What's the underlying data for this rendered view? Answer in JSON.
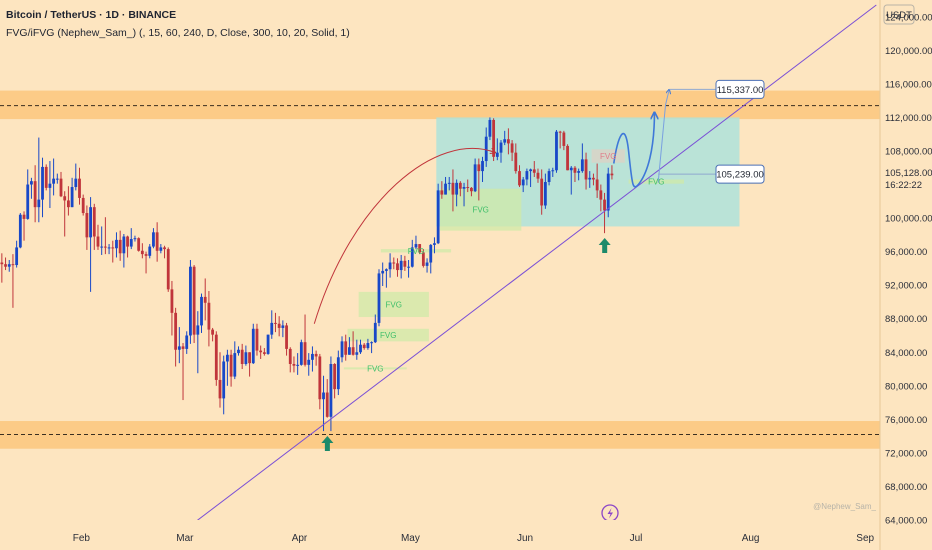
{
  "header": {
    "title": "Bitcoin / TetherUS · 1D · BINANCE",
    "indicator": "FVG/iFVG (Nephew_Sam_) (, 15, 60, 240, D, Close, 300, 10, 20, Solid, 1)"
  },
  "watermark": "@Nephew_Sam_",
  "flash_icon": "lightning-bolt-icon",
  "colors": {
    "background": "#fde5c0",
    "bull": "#1848c8",
    "bear": "#c0353b",
    "zone": "#fbc77c",
    "box": "#aee3da",
    "fvg_fill": "#cfeaa8",
    "fvg_text": "#3fbf6a",
    "trendline": "#7a4fd6",
    "arrow": "#1c8a6a",
    "projection": "#3e78d8"
  },
  "chart_data": {
    "type": "candlestick",
    "price_unit": "USDT",
    "x_axis": {
      "labels": [
        "Feb",
        "Mar",
        "Apr",
        "May",
        "Jun",
        "Jul",
        "Aug",
        "Sep"
      ],
      "start": "2025-01-10",
      "end": "2025-09-05"
    },
    "y_axis": {
      "range": [
        64000,
        126000
      ],
      "ticks": [
        "124,000.00",
        "120,000.00",
        "116,000.00",
        "112,000.00",
        "108,000.00",
        "100,000.00",
        "96,000.00",
        "92,000.00",
        "88,000.00",
        "84,000.00",
        "80,000.00",
        "76,000.00",
        "72,000.00",
        "68,000.00",
        "64,000.00"
      ]
    },
    "last_price": {
      "value": "105,128.00",
      "countdown": "16:22:22",
      "price": 105128
    },
    "price_labels": [
      {
        "text": "115,337.00",
        "price": 115337
      },
      {
        "text": "105,239.00",
        "price": 105239
      }
    ],
    "zones": [
      {
        "from": 111800,
        "to": 115200,
        "dashed_at": 113400
      },
      {
        "from": 72500,
        "to": 75800,
        "dashed_at": 74200
      }
    ],
    "consolidation_box": {
      "from_date": "2025-05-08",
      "to_date": "2025-07-29",
      "top": 112000,
      "bottom": 99000
    },
    "trendline": {
      "start": [
        "2025-03-03",
        63500
      ],
      "end": [
        "2025-09-04",
        125400
      ]
    },
    "fvg_zones": [
      {
        "label": "FVG",
        "from_date": "2025-05-09",
        "to_date": "2025-05-31",
        "top": 103500,
        "bottom": 98500
      },
      {
        "label": "FVG",
        "from_date": "2025-04-23",
        "to_date": "2025-05-12",
        "top": 96300,
        "bottom": 95900
      },
      {
        "label": "FVG",
        "from_date": "2025-04-17",
        "to_date": "2025-05-06",
        "top": 91200,
        "bottom": 88200
      },
      {
        "label": "FVG",
        "from_date": "2025-04-14",
        "to_date": "2025-05-06",
        "top": 86800,
        "bottom": 85300
      },
      {
        "label": "FVG",
        "from_date": "2025-04-13",
        "to_date": "2025-04-30",
        "top": 82200,
        "bottom": 82200
      },
      {
        "label": "FVG",
        "from_date": "2025-06-19",
        "to_date": "2025-06-28",
        "top": 108200,
        "bottom": 106600
      },
      {
        "label": "FVG",
        "from_date": "2025-06-29",
        "to_date": "2025-07-14",
        "top": 104600,
        "bottom": 104100
      }
    ],
    "ohlc": [
      [
        "2025-01-10",
        94700,
        95800,
        92300,
        94500
      ],
      [
        "2025-01-11",
        94500,
        95300,
        93800,
        94200
      ],
      [
        "2025-01-12",
        94200,
        95000,
        93600,
        94500
      ],
      [
        "2025-01-13",
        94500,
        95700,
        89300,
        94400
      ],
      [
        "2025-01-14",
        94400,
        97300,
        94100,
        96500
      ],
      [
        "2025-01-15",
        96500,
        100600,
        96400,
        100400
      ],
      [
        "2025-01-16",
        100400,
        100800,
        97300,
        99900
      ],
      [
        "2025-01-17",
        99900,
        105800,
        99800,
        104000
      ],
      [
        "2025-01-18",
        104000,
        104800,
        102300,
        104400
      ],
      [
        "2025-01-19",
        104400,
        106300,
        99500,
        101300
      ],
      [
        "2025-01-20",
        101300,
        109600,
        99500,
        102200
      ],
      [
        "2025-01-21",
        102200,
        107200,
        100100,
        106100
      ],
      [
        "2025-01-22",
        106100,
        106400,
        103300,
        103600
      ],
      [
        "2025-01-23",
        103600,
        106800,
        101200,
        104100
      ],
      [
        "2025-01-24",
        104100,
        107100,
        102700,
        104700
      ],
      [
        "2025-01-25",
        104700,
        105300,
        104100,
        104700
      ],
      [
        "2025-01-26",
        104700,
        105500,
        102500,
        102600
      ],
      [
        "2025-01-27",
        102600,
        103200,
        97800,
        102100
      ],
      [
        "2025-01-28",
        102100,
        103800,
        100300,
        101300
      ],
      [
        "2025-01-29",
        101300,
        104800,
        101300,
        103700
      ],
      [
        "2025-01-30",
        103700,
        106500,
        103300,
        104700
      ],
      [
        "2025-01-31",
        104700,
        106000,
        101600,
        102400
      ],
      [
        "2025-02-01",
        102400,
        102800,
        100300,
        100600
      ],
      [
        "2025-02-02",
        100600,
        101500,
        96200,
        97700
      ],
      [
        "2025-02-03",
        97700,
        102500,
        91200,
        101300
      ],
      [
        "2025-02-04",
        101300,
        101700,
        96200,
        97800
      ],
      [
        "2025-02-05",
        97800,
        99200,
        96200,
        96600
      ],
      [
        "2025-02-06",
        96600,
        99000,
        95600,
        96600
      ],
      [
        "2025-02-07",
        96600,
        100100,
        95700,
        96500
      ],
      [
        "2025-02-08",
        96500,
        96900,
        95700,
        96500
      ],
      [
        "2025-02-09",
        96500,
        97300,
        94700,
        96400
      ],
      [
        "2025-02-10",
        96400,
        98300,
        95300,
        97400
      ],
      [
        "2025-02-11",
        97400,
        98500,
        94900,
        95800
      ],
      [
        "2025-02-12",
        95800,
        98100,
        94100,
        97800
      ],
      [
        "2025-02-13",
        97800,
        97900,
        95300,
        96600
      ],
      [
        "2025-02-14",
        96600,
        98800,
        96300,
        97500
      ],
      [
        "2025-02-15",
        97500,
        97900,
        97200,
        97600
      ],
      [
        "2025-02-16",
        97600,
        97700,
        96000,
        96100
      ],
      [
        "2025-02-17",
        96100,
        97000,
        95200,
        95700
      ],
      [
        "2025-02-18",
        95700,
        96000,
        93400,
        95500
      ],
      [
        "2025-02-19",
        95500,
        96900,
        95200,
        96600
      ],
      [
        "2025-02-20",
        96600,
        98800,
        96400,
        98300
      ],
      [
        "2025-02-21",
        98300,
        99500,
        94800,
        96100
      ],
      [
        "2025-02-22",
        96100,
        96900,
        95800,
        96500
      ],
      [
        "2025-02-23",
        96500,
        96700,
        95200,
        96300
      ],
      [
        "2025-02-24",
        96300,
        96500,
        91200,
        91500
      ],
      [
        "2025-02-25",
        91500,
        92500,
        86000,
        88700
      ],
      [
        "2025-02-26",
        88700,
        89300,
        82300,
        84300
      ],
      [
        "2025-02-27",
        84300,
        87000,
        82700,
        84700
      ],
      [
        "2025-02-28",
        84700,
        85100,
        78300,
        84400
      ],
      [
        "2025-03-01",
        84400,
        86500,
        83800,
        86000
      ],
      [
        "2025-03-02",
        86000,
        95000,
        85000,
        94200
      ],
      [
        "2025-03-03",
        94200,
        94400,
        85100,
        86100
      ],
      [
        "2025-03-04",
        86100,
        88900,
        81500,
        87200
      ],
      [
        "2025-03-05",
        87200,
        91000,
        86300,
        90600
      ],
      [
        "2025-03-06",
        90600,
        92800,
        87800,
        89900
      ],
      [
        "2025-03-07",
        89900,
        91300,
        84700,
        86700
      ],
      [
        "2025-03-08",
        86700,
        86900,
        85300,
        86100
      ],
      [
        "2025-03-09",
        86100,
        86500,
        80000,
        80700
      ],
      [
        "2025-03-10",
        80700,
        84000,
        77400,
        78500
      ],
      [
        "2025-03-11",
        78500,
        83600,
        76600,
        82900
      ],
      [
        "2025-03-12",
        82900,
        84300,
        80000,
        83700
      ],
      [
        "2025-03-13",
        83700,
        84300,
        79900,
        81100
      ],
      [
        "2025-03-14",
        81100,
        85300,
        80800,
        83900
      ],
      [
        "2025-03-15",
        83900,
        84700,
        83600,
        84300
      ],
      [
        "2025-03-16",
        84300,
        85000,
        82000,
        82600
      ],
      [
        "2025-03-17",
        82600,
        84800,
        82400,
        84000
      ],
      [
        "2025-03-18",
        84000,
        84000,
        81100,
        82700
      ],
      [
        "2025-03-19",
        82700,
        87400,
        82600,
        86800
      ],
      [
        "2025-03-20",
        86800,
        87400,
        83600,
        84200
      ],
      [
        "2025-03-21",
        84200,
        84800,
        83200,
        84000
      ],
      [
        "2025-03-22",
        84000,
        84500,
        83600,
        83800
      ],
      [
        "2025-03-23",
        83800,
        86100,
        83700,
        86100
      ],
      [
        "2025-03-24",
        86100,
        89000,
        85600,
        87500
      ],
      [
        "2025-03-25",
        87500,
        88700,
        86400,
        87400
      ],
      [
        "2025-03-26",
        87400,
        88300,
        85900,
        86900
      ],
      [
        "2025-03-27",
        86900,
        87800,
        85800,
        87200
      ],
      [
        "2025-03-28",
        87200,
        87500,
        83600,
        84400
      ],
      [
        "2025-03-29",
        84400,
        84600,
        81600,
        82600
      ],
      [
        "2025-03-30",
        82600,
        83500,
        81600,
        82400
      ],
      [
        "2025-03-31",
        82400,
        83900,
        81300,
        82500
      ],
      [
        "2025-04-01",
        82500,
        85500,
        82400,
        85200
      ],
      [
        "2025-04-02",
        85200,
        88500,
        82300,
        82500
      ],
      [
        "2025-04-03",
        82500,
        83900,
        81200,
        83100
      ],
      [
        "2025-04-04",
        83100,
        84700,
        81700,
        83800
      ],
      [
        "2025-04-05",
        83800,
        84200,
        82400,
        83500
      ],
      [
        "2025-04-06",
        83500,
        83800,
        77200,
        78400
      ],
      [
        "2025-04-07",
        78400,
        81200,
        74600,
        79200
      ],
      [
        "2025-04-08",
        79200,
        80800,
        76200,
        76300
      ],
      [
        "2025-04-09",
        76300,
        83500,
        74600,
        82600
      ],
      [
        "2025-04-10",
        82600,
        82700,
        78500,
        79600
      ],
      [
        "2025-04-11",
        79600,
        84200,
        78900,
        83400
      ],
      [
        "2025-04-12",
        83400,
        85900,
        82800,
        85300
      ],
      [
        "2025-04-13",
        85300,
        86100,
        83000,
        83700
      ],
      [
        "2025-04-14",
        83700,
        85800,
        83700,
        84600
      ],
      [
        "2025-04-15",
        84600,
        86500,
        83600,
        83700
      ],
      [
        "2025-04-16",
        83700,
        85500,
        83100,
        84000
      ],
      [
        "2025-04-17",
        84000,
        85500,
        83800,
        84900
      ],
      [
        "2025-04-18",
        84900,
        85100,
        84300,
        84500
      ],
      [
        "2025-04-19",
        84500,
        85600,
        84300,
        85100
      ],
      [
        "2025-04-20",
        85100,
        85300,
        83900,
        85200
      ],
      [
        "2025-04-21",
        85200,
        88500,
        85100,
        87500
      ],
      [
        "2025-04-22",
        87500,
        93900,
        87100,
        93400
      ],
      [
        "2025-04-23",
        93400,
        94700,
        91900,
        93700
      ],
      [
        "2025-04-24",
        93700,
        94000,
        91700,
        93900
      ],
      [
        "2025-04-25",
        93900,
        95800,
        92900,
        94700
      ],
      [
        "2025-04-26",
        94700,
        95300,
        93900,
        94600
      ],
      [
        "2025-04-27",
        94600,
        95200,
        93000,
        93800
      ],
      [
        "2025-04-28",
        93800,
        95600,
        92800,
        94900
      ],
      [
        "2025-04-29",
        94900,
        95500,
        93700,
        94200
      ],
      [
        "2025-04-30",
        94200,
        95000,
        92900,
        94200
      ],
      [
        "2025-05-01",
        94200,
        97400,
        94100,
        96500
      ],
      [
        "2025-05-02",
        96500,
        97900,
        96300,
        96900
      ],
      [
        "2025-05-03",
        96900,
        96900,
        95700,
        95900
      ],
      [
        "2025-05-04",
        95900,
        96300,
        94100,
        94300
      ],
      [
        "2025-05-05",
        94300,
        95200,
        93500,
        94700
      ],
      [
        "2025-05-06",
        94700,
        96900,
        93400,
        96800
      ],
      [
        "2025-05-07",
        96800,
        97700,
        95800,
        97000
      ],
      [
        "2025-05-08",
        97000,
        104100,
        96900,
        103300
      ],
      [
        "2025-05-09",
        103300,
        104400,
        102300,
        102800
      ],
      [
        "2025-05-10",
        102800,
        104900,
        102800,
        104100
      ],
      [
        "2025-05-11",
        104100,
        104900,
        103300,
        104200
      ],
      [
        "2025-05-12",
        104200,
        105800,
        100800,
        102800
      ],
      [
        "2025-05-13",
        102800,
        104600,
        101400,
        104200
      ],
      [
        "2025-05-14",
        104200,
        104400,
        102600,
        103500
      ],
      [
        "2025-05-15",
        103500,
        104200,
        101400,
        103700
      ],
      [
        "2025-05-16",
        103700,
        104600,
        103100,
        103600
      ],
      [
        "2025-05-17",
        103600,
        103700,
        102600,
        103200
      ],
      [
        "2025-05-18",
        103200,
        107100,
        103100,
        106400
      ],
      [
        "2025-05-19",
        106400,
        107100,
        102100,
        105600
      ],
      [
        "2025-05-20",
        105600,
        107300,
        104300,
        106800
      ],
      [
        "2025-05-21",
        106800,
        110800,
        106100,
        109700
      ],
      [
        "2025-05-22",
        109700,
        112000,
        109300,
        111700
      ],
      [
        "2025-05-23",
        111700,
        111900,
        106800,
        107300
      ],
      [
        "2025-05-24",
        107300,
        109500,
        106900,
        107800
      ],
      [
        "2025-05-25",
        107800,
        109300,
        106600,
        109000
      ],
      [
        "2025-05-26",
        109000,
        110400,
        108700,
        109400
      ],
      [
        "2025-05-27",
        109400,
        110700,
        107600,
        108900
      ],
      [
        "2025-05-28",
        108900,
        109300,
        106800,
        107800
      ],
      [
        "2025-05-29",
        107800,
        108900,
        105300,
        105600
      ],
      [
        "2025-05-30",
        105600,
        106300,
        103700,
        103900
      ],
      [
        "2025-05-31",
        103900,
        104900,
        103100,
        104600
      ],
      [
        "2025-06-01",
        104600,
        105900,
        103900,
        105600
      ],
      [
        "2025-06-02",
        105600,
        105900,
        103700,
        105800
      ],
      [
        "2025-06-03",
        105800,
        106800,
        104900,
        105400
      ],
      [
        "2025-06-04",
        105400,
        105900,
        104200,
        104700
      ],
      [
        "2025-06-05",
        104700,
        105800,
        100400,
        101500
      ],
      [
        "2025-06-06",
        101500,
        105300,
        101100,
        104300
      ],
      [
        "2025-06-07",
        104300,
        105900,
        103900,
        105600
      ],
      [
        "2025-06-08",
        105600,
        106000,
        104900,
        105700
      ],
      [
        "2025-06-09",
        105700,
        110500,
        105400,
        110300
      ],
      [
        "2025-06-10",
        110300,
        110400,
        108300,
        110200
      ],
      [
        "2025-06-11",
        110200,
        110400,
        108100,
        108600
      ],
      [
        "2025-06-12",
        108600,
        108800,
        105700,
        105700
      ],
      [
        "2025-06-13",
        105700,
        106200,
        102800,
        106000
      ],
      [
        "2025-06-14",
        106000,
        106200,
        104300,
        105400
      ],
      [
        "2025-06-15",
        105400,
        105900,
        104500,
        105600
      ],
      [
        "2025-06-16",
        105600,
        108900,
        105400,
        107000
      ],
      [
        "2025-06-17",
        107000,
        107800,
        103400,
        104600
      ],
      [
        "2025-06-18",
        104600,
        105600,
        103600,
        104800
      ],
      [
        "2025-06-19",
        104800,
        105300,
        103900,
        104600
      ],
      [
        "2025-06-20",
        104600,
        106500,
        102400,
        103300
      ],
      [
        "2025-06-21",
        103300,
        104000,
        100800,
        102200
      ],
      [
        "2025-06-22",
        102200,
        103000,
        98200,
        100900
      ],
      [
        "2025-06-23",
        100900,
        106000,
        100100,
        105300
      ],
      [
        "2025-06-24",
        105300,
        106300,
        104600,
        105100
      ]
    ]
  }
}
